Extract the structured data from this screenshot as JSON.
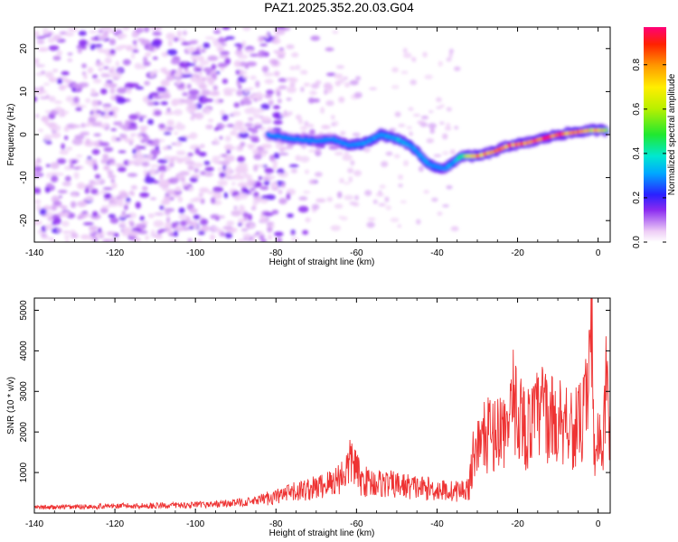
{
  "title": "PAZ1.2025.352.20.03.G04",
  "chart_data": [
    {
      "type": "heatmap",
      "title": "PAZ1.2025.352.20.03.G04",
      "xlabel": "Height of straight line (km)",
      "ylabel": "Frequency (Hz)",
      "xlim": [
        -140,
        3
      ],
      "ylim": [
        -25,
        25
      ],
      "xticks": [
        -140,
        -120,
        -100,
        -80,
        -60,
        -40,
        -20,
        0
      ],
      "yticks": [
        -20,
        -10,
        0,
        10,
        20
      ],
      "colorbar": {
        "label": "Normalized spectral amplitude",
        "range": [
          0,
          0.97
        ],
        "ticks": [
          0.0,
          0.2,
          0.4,
          0.6,
          0.8
        ],
        "tick_labels": [
          "0.0",
          "0.2",
          "0.4",
          "0.6",
          "0.8"
        ]
      },
      "ridge": {
        "x": [
          -82,
          -76,
          -70,
          -66,
          -62,
          -58,
          -54,
          -50,
          -46,
          -42,
          -38,
          -34,
          -30,
          -26,
          -22,
          -18,
          -14,
          -10,
          -6,
          -2,
          2
        ],
        "y": [
          0,
          -1,
          -1.5,
          -1,
          -2.5,
          -2,
          0,
          -1,
          -3,
          -7,
          -8,
          -5,
          -5,
          -4,
          -2.5,
          -2,
          -1,
          0,
          0.5,
          1,
          1
        ],
        "amplitude": [
          0.15,
          0.2,
          0.2,
          0.2,
          0.25,
          0.3,
          0.3,
          0.35,
          0.3,
          0.3,
          0.25,
          0.45,
          0.85,
          0.85,
          0.9,
          0.85,
          0.9,
          0.9,
          0.85,
          0.75,
          0.7
        ]
      },
      "noise_region": {
        "x": [
          -140,
          -82
        ],
        "y": [
          -25,
          25
        ],
        "typical_amplitude": [
          0.05,
          0.25
        ]
      }
    },
    {
      "type": "line",
      "xlabel": "Height of straight line (km)",
      "ylabel": "SNR (10 * v/v)",
      "xlim": [
        -140,
        3
      ],
      "ylim": [
        0,
        5300
      ],
      "xticks": [
        -140,
        -120,
        -100,
        -80,
        -60,
        -40,
        -20,
        0
      ],
      "yticks": [
        1000,
        2000,
        3000,
        4000,
        5000
      ],
      "series": [
        {
          "name": "SNR",
          "color": "#ee3333",
          "x": [
            -140,
            -130,
            -120,
            -110,
            -100,
            -95,
            -90,
            -85,
            -82,
            -78,
            -74,
            -70,
            -66,
            -63,
            -61,
            -59,
            -56,
            -52,
            -48,
            -44,
            -40,
            -36,
            -33,
            -32,
            -31,
            -28,
            -25,
            -22,
            -20,
            -18,
            -16,
            -14,
            -12,
            -10,
            -8,
            -6,
            -4,
            -2.5,
            -2,
            -1.5,
            -1,
            0,
            1,
            2,
            3
          ],
          "y": [
            150,
            170,
            190,
            200,
            220,
            240,
            280,
            320,
            420,
            500,
            620,
            700,
            850,
            1100,
            1500,
            900,
            850,
            800,
            750,
            700,
            650,
            600,
            650,
            700,
            1700,
            2100,
            2300,
            2400,
            3000,
            2300,
            2500,
            2900,
            2600,
            2500,
            2700,
            2300,
            2500,
            3000,
            4200,
            5200,
            1500,
            2000,
            1600,
            3400,
            2000
          ]
        }
      ]
    }
  ]
}
